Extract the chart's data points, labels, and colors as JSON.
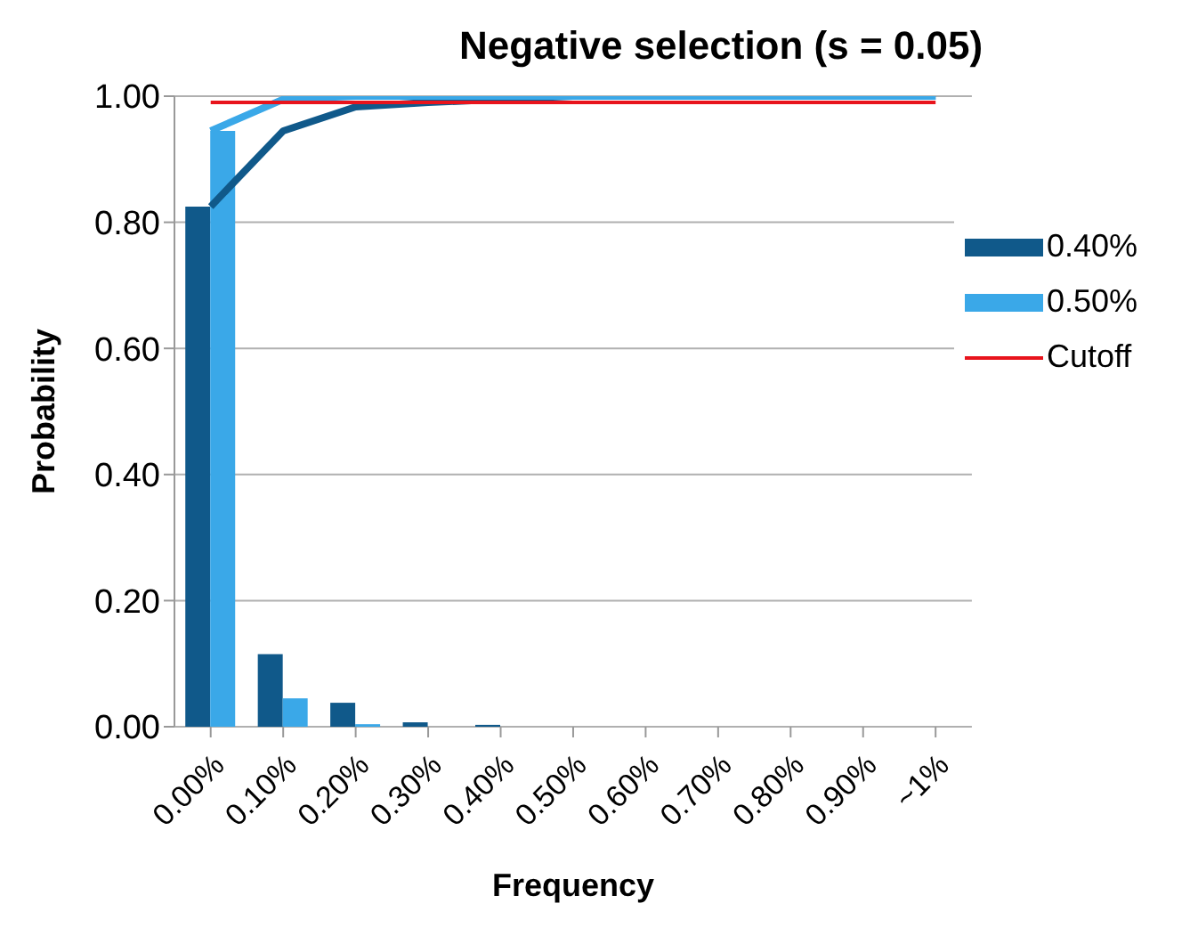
{
  "chart_data": {
    "type": "bar",
    "title": "Negative selection (s = 0.05)",
    "xlabel": "Frequency",
    "ylabel": "Probability",
    "categories": [
      "0.00%",
      "0.10%",
      "0.20%",
      "0.30%",
      "0.40%",
      "0.50%",
      "0.60%",
      "0.70%",
      "0.80%",
      "0.90%",
      "~1%"
    ],
    "series": [
      {
        "name": "0.40%",
        "color": "#10598a",
        "values": [
          0.825,
          0.115,
          0.038,
          0.007,
          0.003,
          0,
          0,
          0,
          0,
          0,
          0
        ]
      },
      {
        "name": "0.50%",
        "color": "#3aa8e8",
        "values": [
          0.945,
          0.045,
          0.004,
          0,
          0,
          0,
          0,
          0,
          0,
          0,
          0
        ]
      },
      {
        "type": "line",
        "color": "#10598a",
        "values": [
          0.825,
          0.945,
          0.983,
          0.99,
          0.995,
          1,
          1,
          1,
          1,
          1,
          1
        ]
      },
      {
        "type": "line",
        "color": "#3aa8e8",
        "values": [
          0.945,
          0.995,
          1,
          1,
          1,
          1,
          1,
          1,
          1,
          1,
          1
        ]
      },
      {
        "name": "Cutoff",
        "type": "line",
        "color": "#e8141c",
        "values": [
          0.99,
          0.99,
          0.99,
          0.99,
          0.99,
          0.99,
          0.99,
          0.99,
          0.99,
          0.99,
          0.99
        ]
      }
    ],
    "ylim": [
      0,
      1
    ],
    "yticks": [
      {
        "value": 0,
        "label": "0.00"
      },
      {
        "value": 0.2,
        "label": "0.20"
      },
      {
        "value": 0.4,
        "label": "0.40"
      },
      {
        "value": 0.6,
        "label": "0.60"
      },
      {
        "value": 0.8,
        "label": "0.80"
      },
      {
        "value": 1,
        "label": "1.00"
      }
    ],
    "grid": "y",
    "legend": "right",
    "marker": "none"
  }
}
